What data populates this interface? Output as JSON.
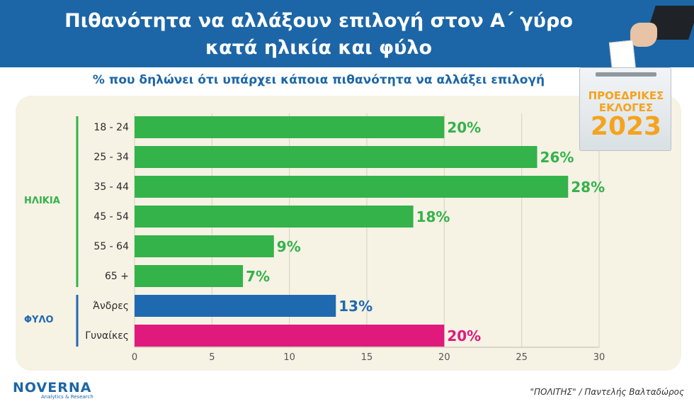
{
  "header": {
    "title_line1": "Πιθανότητα να αλλάξουν επιλογή στον Α΄ γύρο",
    "title_line2": "κατά ηλικία και φύλο"
  },
  "subtitle": "% που δηλώνει ότι υπάρχει κάποια πιθανότητα να αλλάξει επιλογή",
  "badge": {
    "line1": "ΠΡΟΕΔΡΙΚΕΣ",
    "line2": "ΕΚΛΟΓΕΣ",
    "year": "2023"
  },
  "logo": {
    "name": "NOVERNA",
    "tagline": "Analytics & Research"
  },
  "source": "\"ΠΟΛΙΤΗΣ\" / Παντελής Βαλταδώρος",
  "colors": {
    "header_blue": "#1c66a7",
    "green": "#33b34a",
    "blue": "#1f69b1",
    "magenta": "#e0197d"
  },
  "chart_data": {
    "type": "bar",
    "orientation": "horizontal",
    "groups": [
      {
        "label": "ΗΛΙΚΙΑ",
        "color": "#33b34a",
        "categories": [
          "18 - 24",
          "25 - 34",
          "35 - 44",
          "45 - 54",
          "55 - 64",
          "65 +"
        ]
      },
      {
        "label": "ΦΥΛΟ",
        "color": "#1f69b1",
        "categories": [
          "Άνδρες",
          "Γυναίκες"
        ]
      }
    ],
    "categories": [
      "18 - 24",
      "25 - 34",
      "35 - 44",
      "45 - 54",
      "55 - 64",
      "65 +",
      "Άνδρες",
      "Γυναίκες"
    ],
    "values": [
      20,
      26,
      28,
      18,
      9,
      7,
      13,
      20
    ],
    "value_labels": [
      "20%",
      "26%",
      "28%",
      "18%",
      "9%",
      "7%",
      "13%",
      "20%"
    ],
    "bar_colors": [
      "#33b34a",
      "#33b34a",
      "#33b34a",
      "#33b34a",
      "#33b34a",
      "#33b34a",
      "#1f69b1",
      "#e0197d"
    ],
    "xlim": [
      0,
      30
    ],
    "xticks": [
      0,
      5,
      10,
      15,
      20,
      25,
      30
    ],
    "grid": true
  }
}
